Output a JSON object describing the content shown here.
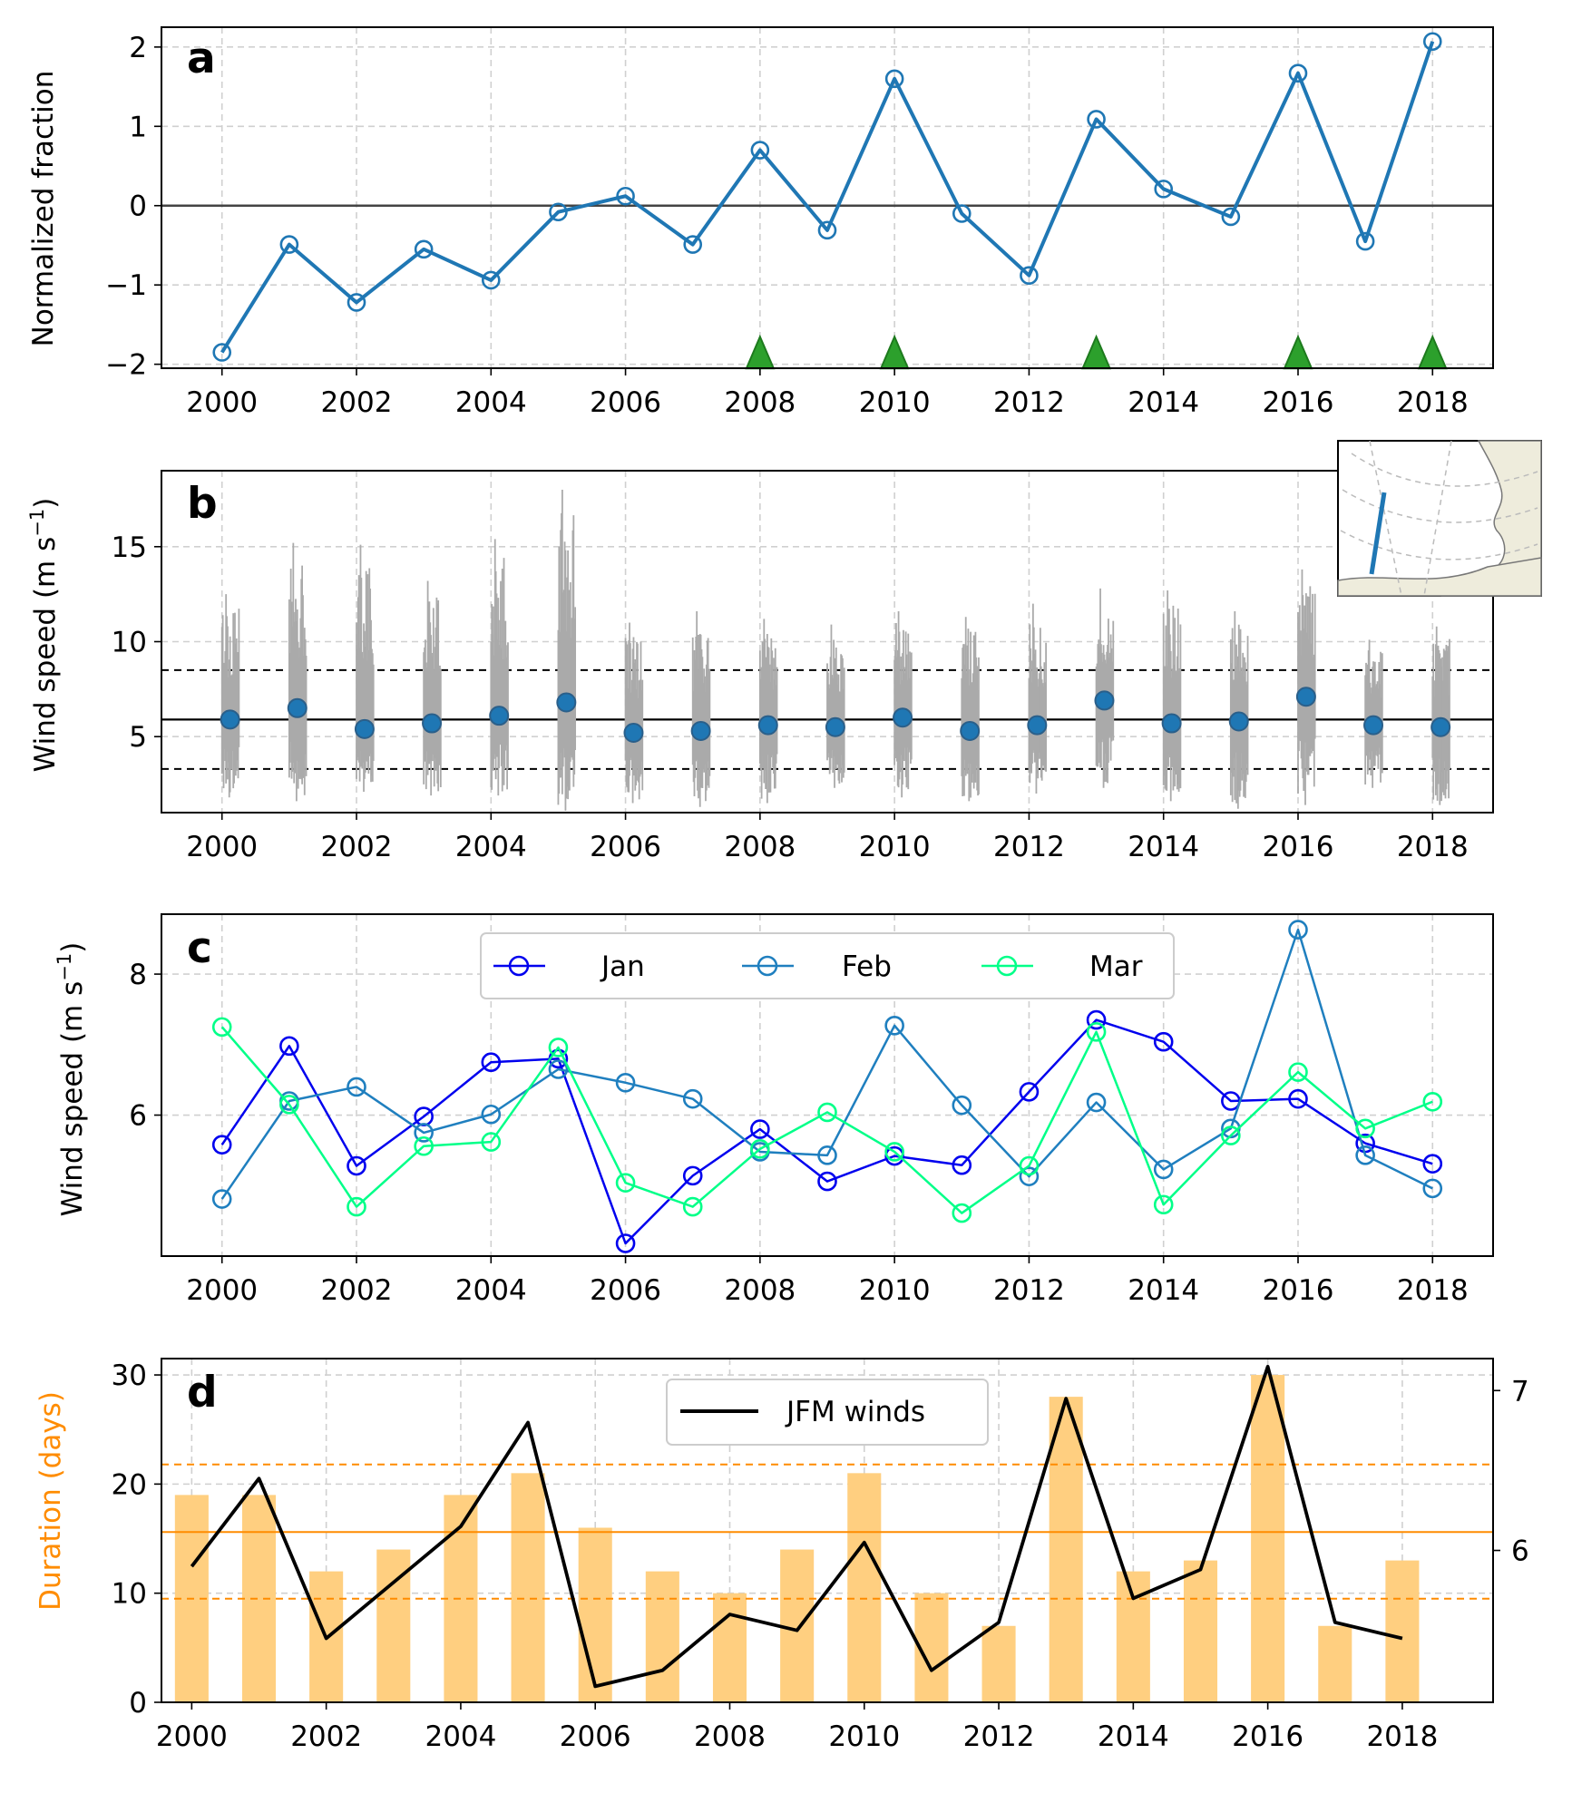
{
  "chart_data": [
    {
      "panel": "a",
      "type": "line",
      "panel_label": "a",
      "ylabel": "Normalized fraction",
      "xlabel": "",
      "x": [
        2000,
        2001,
        2002,
        2003,
        2004,
        2005,
        2006,
        2007,
        2008,
        2009,
        2010,
        2011,
        2012,
        2013,
        2014,
        2015,
        2016,
        2017,
        2018
      ],
      "series": [
        {
          "values": [
            -1.85,
            -0.49,
            -1.22,
            -0.55,
            -0.94,
            -0.08,
            0.12,
            -0.49,
            0.7,
            -0.31,
            1.6,
            -0.1,
            -0.88,
            1.09,
            0.21,
            -0.14,
            1.67,
            -0.45,
            2.07
          ],
          "color": "#1f77b4",
          "marker": "open-circle"
        }
      ],
      "event_markers": {
        "x": [
          2008,
          2010,
          2013,
          2016,
          2018
        ],
        "y": -1.95,
        "color": "#2ca02c",
        "marker": "triangle"
      },
      "hline": 0,
      "xlim": [
        1999.1,
        2018.9
      ],
      "ylim": [
        -2.05,
        2.25
      ],
      "xticks": [
        "2000",
        "2002",
        "2004",
        "2006",
        "2008",
        "2010",
        "2012",
        "2014",
        "2016",
        "2018"
      ],
      "yticks": [
        "−2",
        "−1",
        "0",
        "1",
        "2"
      ],
      "grid": true
    },
    {
      "panel": "b",
      "type": "scatter",
      "panel_label": "b",
      "ylabel": "Wind speed (m s",
      "ylabel_sup": "−1",
      "ylabel_end": ")",
      "x": [
        2000.12,
        2001.12,
        2002.12,
        2003.12,
        2004.12,
        2005.12,
        2006.12,
        2007.12,
        2008.12,
        2009.12,
        2010.12,
        2011.12,
        2012.12,
        2013.12,
        2014.12,
        2015.12,
        2016.12,
        2017.12,
        2018.12
      ],
      "values": [
        5.9,
        6.5,
        5.4,
        5.7,
        6.1,
        6.8,
        5.2,
        5.3,
        5.6,
        5.5,
        6.0,
        5.3,
        5.6,
        6.9,
        5.7,
        5.8,
        7.1,
        5.6,
        5.5
      ],
      "daily_range_max": [
        12.5,
        15.2,
        15.1,
        13.2,
        15.4,
        18.0,
        11.0,
        11.6,
        11.2,
        10.9,
        11.6,
        11.3,
        12.0,
        12.8,
        12.7,
        11.6,
        13.8,
        10.1,
        10.8
      ],
      "daily_range_min": [
        1.8,
        1.6,
        2.1,
        1.9,
        1.9,
        1.1,
        1.5,
        1.3,
        1.5,
        2.3,
        1.8,
        1.6,
        2.0,
        2.3,
        1.6,
        1.2,
        1.4,
        2.3,
        1.4
      ],
      "mean_line": 5.9,
      "std_lines": [
        3.3,
        8.5
      ],
      "point_color": "#1f77b4",
      "range_color": "#aaaaaa",
      "xlim": [
        1999.1,
        2018.9
      ],
      "ylim": [
        1.0,
        19.0
      ],
      "xticks": [
        "2000",
        "2002",
        "2004",
        "2006",
        "2008",
        "2010",
        "2012",
        "2014",
        "2016",
        "2018"
      ],
      "yticks": [
        "5",
        "10",
        "15"
      ],
      "grid": true,
      "inset_map": true
    },
    {
      "panel": "c",
      "type": "line",
      "panel_label": "c",
      "ylabel": "Wind speed (m s",
      "ylabel_sup": "−1",
      "ylabel_end": ")",
      "x": [
        2000,
        2001,
        2002,
        2003,
        2004,
        2005,
        2006,
        2007,
        2008,
        2009,
        2010,
        2011,
        2012,
        2013,
        2014,
        2015,
        2016,
        2017,
        2018
      ],
      "series": [
        {
          "name": "Jan",
          "color": "#0000ee",
          "values": [
            5.58,
            6.98,
            5.28,
            5.98,
            6.75,
            6.8,
            4.18,
            5.14,
            5.8,
            5.06,
            5.42,
            5.29,
            6.33,
            7.35,
            7.04,
            6.2,
            6.23,
            5.6,
            5.31
          ]
        },
        {
          "name": "Feb",
          "color": "#1f7fbf",
          "values": [
            4.81,
            6.2,
            6.4,
            5.75,
            6.01,
            6.65,
            6.46,
            6.23,
            5.48,
            5.43,
            7.27,
            6.14,
            5.13,
            6.18,
            5.23,
            5.81,
            8.63,
            5.43,
            4.96
          ]
        },
        {
          "name": "Mar",
          "color": "#00ff88",
          "values": [
            7.25,
            6.15,
            4.7,
            5.56,
            5.62,
            6.96,
            5.04,
            4.7,
            5.52,
            6.04,
            5.48,
            4.61,
            5.28,
            7.18,
            4.73,
            5.71,
            6.61,
            5.81,
            6.19
          ]
        }
      ],
      "legend": "top-center",
      "xlim": [
        1999.1,
        2018.9
      ],
      "ylim": [
        4.0,
        8.85
      ],
      "xticks": [
        "2000",
        "2002",
        "2004",
        "2006",
        "2008",
        "2010",
        "2012",
        "2014",
        "2016",
        "2018"
      ],
      "yticks": [
        "6",
        "8"
      ],
      "grid": true
    },
    {
      "panel": "d",
      "type": "bar",
      "panel_label": "d",
      "ylabel": "Duration (days)",
      "ylabel_color": "#ff8c00",
      "x": [
        2000,
        2001,
        2002,
        2003,
        2004,
        2005,
        2006,
        2007,
        2008,
        2009,
        2010,
        2011,
        2012,
        2013,
        2014,
        2015,
        2016,
        2017,
        2018
      ],
      "bar_values": [
        19,
        19,
        12,
        14,
        19,
        21,
        16,
        12,
        10,
        14,
        21,
        10,
        7,
        28,
        12,
        13,
        30,
        7,
        13
      ],
      "bar_color": "#ffcf80",
      "mean_line": 15.6,
      "std_lines": [
        9.5,
        21.8
      ],
      "ref_line_color": "#ff8c00",
      "series": [
        {
          "name": "JFM winds",
          "color": "#000000",
          "values": [
            5.9,
            6.45,
            5.45,
            5.8,
            6.15,
            6.8,
            5.15,
            5.25,
            5.6,
            5.5,
            6.05,
            5.25,
            5.55,
            6.95,
            5.7,
            5.88,
            7.15,
            5.55,
            5.45
          ]
        }
      ],
      "y2lim": [
        5.05,
        7.2
      ],
      "y2ticks": [
        "6",
        "7"
      ],
      "legend": "top-center",
      "xlim": [
        1999.55,
        2019.35
      ],
      "ylim": [
        0,
        31.5
      ],
      "xticks": [
        "2000",
        "2002",
        "2004",
        "2006",
        "2008",
        "2010",
        "2012",
        "2014",
        "2016",
        "2018"
      ],
      "yticks": [
        "0",
        "10",
        "20",
        "30"
      ],
      "grid": true
    }
  ]
}
